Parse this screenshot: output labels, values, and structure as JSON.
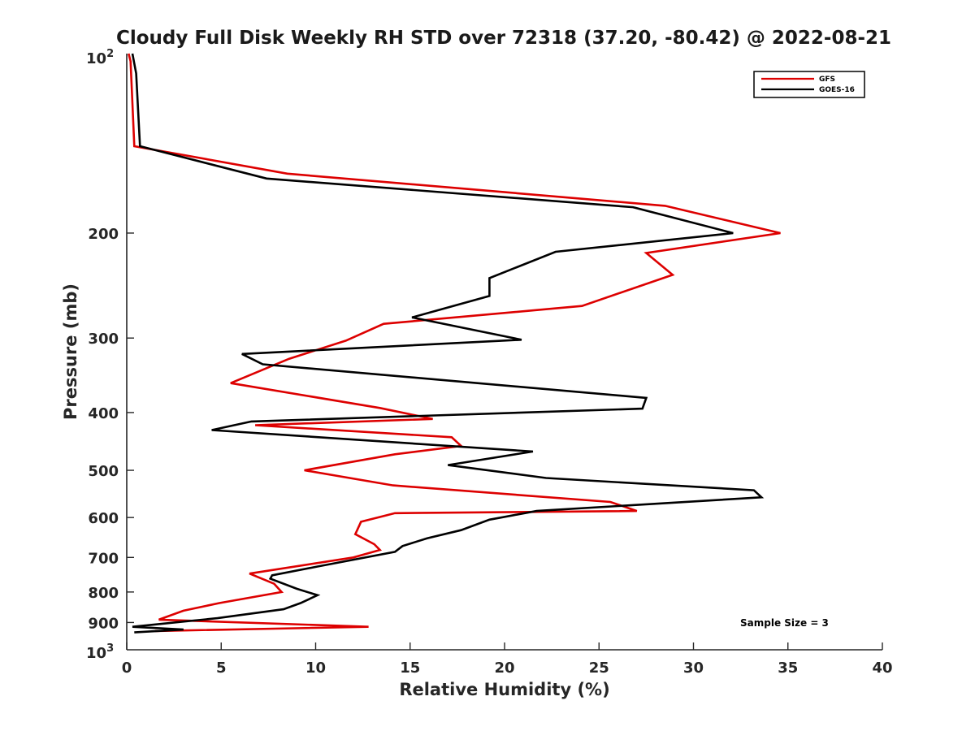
{
  "chart_data": {
    "type": "line",
    "title": "Cloudy Full Disk Weekly RH STD over 72318 (37.20, -80.42) @ 2022-08-21",
    "xlabel": "Relative Humidity (%)",
    "ylabel": "Pressure (mb)",
    "xlim": [
      0,
      40
    ],
    "ylim": [
      100,
      1000
    ],
    "yscale": "log",
    "yreverse": true,
    "x_ticks": [
      0,
      5,
      10,
      15,
      20,
      25,
      30,
      35,
      40
    ],
    "x_tick_labels": [
      "0",
      "5",
      "10",
      "15",
      "20",
      "25",
      "30",
      "35",
      "40"
    ],
    "y_ticks": [
      200,
      300,
      400,
      500,
      600,
      700,
      800,
      900
    ],
    "y_tick_labels": [
      "200",
      "300",
      "400",
      "500",
      "600",
      "700",
      "800",
      "900"
    ],
    "y_end_labels": {
      "top_base": "10",
      "top_exp": "2",
      "bottom_base": "10",
      "bottom_exp": "3"
    },
    "legend_position": "top-right",
    "annotation": "Sample Size = 3",
    "series": [
      {
        "name": "GFS",
        "color": "#dd0000",
        "x": [
          0.1,
          0.2,
          0.4,
          8.5,
          28.5,
          34.6,
          27.5,
          28.9,
          24.1,
          13.6,
          11.6,
          8.6,
          5.5,
          13.4,
          16.2,
          6.8,
          17.2,
          17.7,
          14.2,
          9.4,
          14.1,
          25.6,
          27.0,
          14.2,
          12.4,
          12.1,
          13.1,
          13.4,
          12.0,
          6.5,
          7.8,
          8.2,
          4.9,
          3.0,
          1.7,
          12.8,
          1.5
        ],
        "y": [
          100,
          103,
          143,
          159,
          180,
          200,
          216,
          235,
          265,
          284,
          303,
          325,
          357,
          393,
          410,
          420,
          440,
          455,
          470,
          500,
          530,
          565,
          585,
          590,
          610,
          640,
          665,
          680,
          700,
          745,
          775,
          800,
          835,
          860,
          890,
          915,
          930
        ]
      },
      {
        "name": "GOES-16",
        "color": "#000000",
        "x": [
          0.3,
          0.5,
          0.7,
          7.4,
          26.8,
          32.1,
          22.7,
          19.2,
          19.2,
          15.1,
          20.9,
          6.1,
          7.2,
          27.5,
          27.3,
          6.6,
          4.5,
          21.5,
          17.0,
          22.2,
          33.2,
          33.6,
          21.7,
          19.2,
          17.7,
          15.9,
          14.6,
          14.2,
          10.1,
          7.7,
          7.6,
          9.0,
          10.1,
          9.2,
          8.3,
          4.8,
          0.3,
          3.0,
          0.4
        ],
        "y": [
          100,
          108,
          143,
          162,
          181,
          200,
          215,
          238,
          255,
          277,
          302,
          319,
          332,
          378,
          394,
          414,
          428,
          465,
          490,
          515,
          540,
          555,
          585,
          605,
          630,
          650,
          670,
          685,
          725,
          750,
          760,
          790,
          810,
          835,
          855,
          885,
          915,
          925,
          935
        ]
      }
    ]
  }
}
